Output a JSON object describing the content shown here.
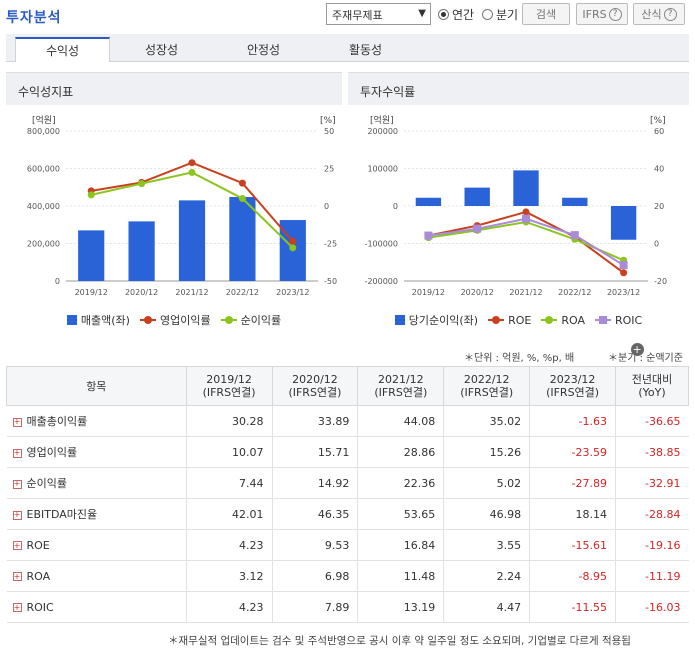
{
  "header": {
    "title": "투자분석",
    "select_value": "주재무제표",
    "radio_annual": "연간",
    "radio_quarter": "분기",
    "search_btn": "검색",
    "ifrs_btn": "IFRS",
    "formula_btn": "산식",
    "help_icon": "?"
  },
  "tabs": [
    "수익성",
    "성장성",
    "안정성",
    "활동성"
  ],
  "left_panel": {
    "title": "수익성지표"
  },
  "right_panel": {
    "title": "투자수익률"
  },
  "units": {
    "unit": "＊단위 : 억원, %, %p, 배",
    "quarter": "＊분기 : 순액기준"
  },
  "table": {
    "headers": [
      "항목",
      "2019/12\n(IFRS연결)",
      "2020/12\n(IFRS연결)",
      "2021/12\n(IFRS연결)",
      "2022/12\n(IFRS연결)",
      "2023/12\n(IFRS연결)",
      "전년대비\n(YoY)"
    ],
    "rows": [
      {
        "label": "매출총이익률",
        "values": [
          "30.28",
          "33.89",
          "44.08",
          "35.02",
          "-1.63",
          "-36.65"
        ]
      },
      {
        "label": "영업이익률",
        "values": [
          "10.07",
          "15.71",
          "28.86",
          "15.26",
          "-23.59",
          "-38.85"
        ]
      },
      {
        "label": "순이익률",
        "values": [
          "7.44",
          "14.92",
          "22.36",
          "5.02",
          "-27.89",
          "-32.91"
        ]
      },
      {
        "label": "EBITDA마진율",
        "values": [
          "42.01",
          "46.35",
          "53.65",
          "46.98",
          "18.14",
          "-28.84"
        ]
      },
      {
        "label": "ROE",
        "values": [
          "4.23",
          "9.53",
          "16.84",
          "3.55",
          "-15.61",
          "-19.16"
        ]
      },
      {
        "label": "ROA",
        "values": [
          "3.12",
          "6.98",
          "11.48",
          "2.24",
          "-8.95",
          "-11.19"
        ]
      },
      {
        "label": "ROIC",
        "values": [
          "4.23",
          "7.89",
          "13.19",
          "4.47",
          "-11.55",
          "-16.03"
        ]
      }
    ]
  },
  "footer": "＊재무실적 업데이트는 검수 및 주석반영으로 공시 이후 약 일주일 정도 소요되며, 기업별로 다르게 적용됩",
  "chart_data": [
    {
      "type": "bar",
      "left_unit": "[억원]",
      "right_unit": "[%]",
      "categories": [
        "2019/12",
        "2020/12",
        "2021/12",
        "2022/12",
        "2023/12"
      ],
      "ylim": [
        0,
        800000
      ],
      "y2lim": [
        -50,
        50
      ],
      "yticks": [
        "800,000",
        "600,000",
        "400,000",
        "200,000",
        "0"
      ],
      "y2ticks": [
        "50",
        "25",
        "0",
        "-25",
        "-50"
      ],
      "series": [
        {
          "name": "매출액(좌)",
          "kind": "bar",
          "color": "#2a63d8",
          "values": [
            270000,
            318000,
            430000,
            448000,
            325000
          ]
        },
        {
          "name": "영업이익률",
          "kind": "line",
          "color": "#c8401e",
          "values": [
            10.07,
            15.71,
            28.86,
            15.26,
            -23.59
          ]
        },
        {
          "name": "순이익률",
          "kind": "line",
          "color": "#8cc420",
          "values": [
            7.44,
            14.92,
            22.36,
            5.02,
            -27.89
          ]
        }
      ]
    },
    {
      "type": "bar",
      "left_unit": "[억원]",
      "right_unit": "[%]",
      "categories": [
        "2019/12",
        "2020/12",
        "2021/12",
        "2022/12",
        "2023/12"
      ],
      "ylim": [
        -200000,
        200000
      ],
      "y2lim": [
        -20,
        60
      ],
      "yticks": [
        "200000",
        "100000",
        "0",
        "-100000",
        "-200000"
      ],
      "y2ticks": [
        "60",
        "40",
        "20",
        "0",
        "-20"
      ],
      "series": [
        {
          "name": "당기순이익(좌)",
          "kind": "bar",
          "color": "#2a63d8",
          "values": [
            22000,
            49000,
            95000,
            22000,
            -90000
          ]
        },
        {
          "name": "ROE",
          "kind": "line",
          "color": "#c8401e",
          "values": [
            4.23,
            9.53,
            16.84,
            3.55,
            -15.61
          ]
        },
        {
          "name": "ROA",
          "kind": "line",
          "color": "#8cc420",
          "values": [
            3.12,
            6.98,
            11.48,
            2.24,
            -8.95
          ]
        },
        {
          "name": "ROIC",
          "kind": "line",
          "color": "#a98bd8",
          "values": [
            4.23,
            7.89,
            13.19,
            4.47,
            -11.55
          ]
        }
      ]
    }
  ]
}
